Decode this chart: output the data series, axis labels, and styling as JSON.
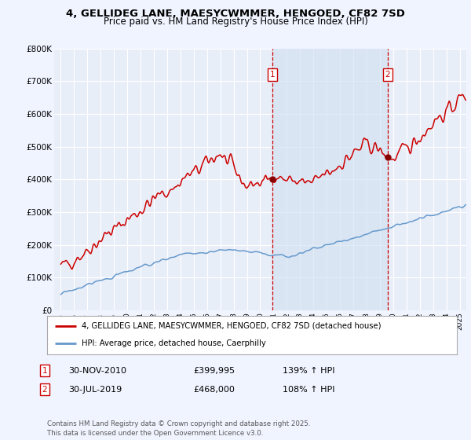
{
  "title_line1": "4, GELLIDEG LANE, MAESYCWMMER, HENGOED, CF82 7SD",
  "title_line2": "Price paid vs. HM Land Registry's House Price Index (HPI)",
  "background_color": "#f0f4ff",
  "plot_bg_color": "#e8eef8",
  "shading_color": "#d0e0f0",
  "legend_label_red": "4, GELLIDEG LANE, MAESYCWMMER, HENGOED, CF82 7SD (detached house)",
  "legend_label_blue": "HPI: Average price, detached house, Caerphilly",
  "annotation1": {
    "label": "1",
    "date": "30-NOV-2010",
    "price": "£399,995",
    "hpi": "139% ↑ HPI",
    "x_year": 2010.92
  },
  "annotation2": {
    "label": "2",
    "date": "30-JUL-2019",
    "price": "£468,000",
    "hpi": "108% ↑ HPI",
    "x_year": 2019.58
  },
  "footer": "Contains HM Land Registry data © Crown copyright and database right 2025.\nThis data is licensed under the Open Government Licence v3.0.",
  "ylim": [
    0,
    800000
  ],
  "yticks": [
    0,
    100000,
    200000,
    300000,
    400000,
    500000,
    600000,
    700000,
    800000
  ],
  "ytick_labels": [
    "£0",
    "£100K",
    "£200K",
    "£300K",
    "£400K",
    "£500K",
    "£600K",
    "£700K",
    "£800K"
  ],
  "xlim_start": 1994.5,
  "xlim_end": 2025.5,
  "xtick_years": [
    1995,
    1996,
    1997,
    1998,
    1999,
    2000,
    2001,
    2002,
    2003,
    2004,
    2005,
    2006,
    2007,
    2008,
    2009,
    2010,
    2011,
    2012,
    2013,
    2014,
    2015,
    2016,
    2017,
    2018,
    2019,
    2020,
    2021,
    2022,
    2023,
    2024,
    2025
  ],
  "red_color": "#cc0000",
  "blue_color": "#6699cc",
  "grid_color": "#ffffff",
  "ann_marker_color": "#880000"
}
